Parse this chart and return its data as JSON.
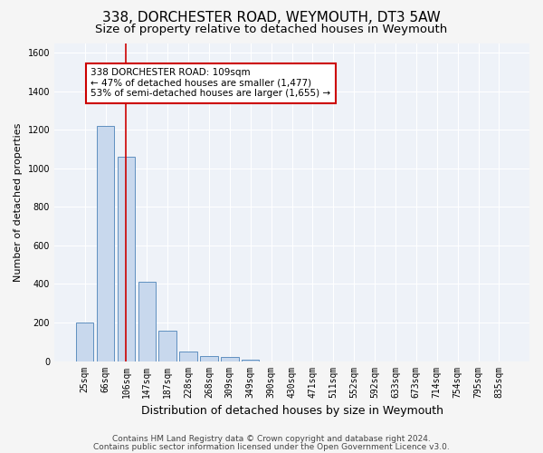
{
  "title1": "338, DORCHESTER ROAD, WEYMOUTH, DT3 5AW",
  "title2": "Size of property relative to detached houses in Weymouth",
  "xlabel": "Distribution of detached houses by size in Weymouth",
  "ylabel": "Number of detached properties",
  "categories": [
    "25sqm",
    "66sqm",
    "106sqm",
    "147sqm",
    "187sqm",
    "228sqm",
    "268sqm",
    "309sqm",
    "349sqm",
    "390sqm",
    "430sqm",
    "471sqm",
    "511sqm",
    "552sqm",
    "592sqm",
    "633sqm",
    "673sqm",
    "714sqm",
    "754sqm",
    "795sqm",
    "835sqm"
  ],
  "bar_values": [
    200,
    1220,
    1060,
    410,
    160,
    50,
    25,
    20,
    8,
    0,
    0,
    0,
    0,
    0,
    0,
    0,
    0,
    0,
    0,
    0,
    0
  ],
  "bar_color": "#c8d8ed",
  "bar_edge_color": "#6090c0",
  "ylim": [
    0,
    1650
  ],
  "yticks": [
    0,
    200,
    400,
    600,
    800,
    1000,
    1200,
    1400,
    1600
  ],
  "property_bin_index": 2,
  "red_line_color": "#cc0000",
  "annotation_text": "338 DORCHESTER ROAD: 109sqm\n← 47% of detached houses are smaller (1,477)\n53% of semi-detached houses are larger (1,655) →",
  "annotation_box_color": "#ffffff",
  "annotation_border_color": "#cc0000",
  "footer1": "Contains HM Land Registry data © Crown copyright and database right 2024.",
  "footer2": "Contains public sector information licensed under the Open Government Licence v3.0.",
  "bg_color": "#eef2f8",
  "grid_color": "#ffffff",
  "fig_bg_color": "#f5f5f5",
  "title1_fontsize": 11,
  "title2_fontsize": 9.5,
  "xlabel_fontsize": 9,
  "ylabel_fontsize": 8,
  "tick_fontsize": 7,
  "annotation_fontsize": 7.5,
  "footer_fontsize": 6.5
}
